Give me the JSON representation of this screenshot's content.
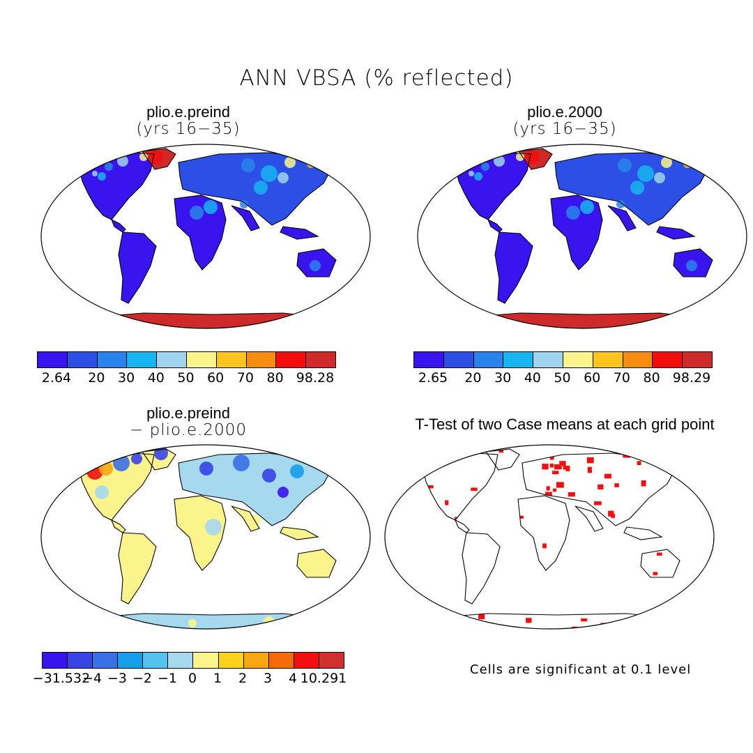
{
  "title": "ANN VBSA (% reflected)",
  "panels": [
    {
      "title": "plio.e.preind",
      "subtitle": "(yrs 16−35)",
      "colorbar": {
        "colors": [
          "#3a14ee",
          "#2c50e6",
          "#2a82ec",
          "#18b4f2",
          "#a0d4ee",
          "#fbf48c",
          "#fcc41c",
          "#f68d10",
          "#f40d0d",
          "#cf2a2a"
        ],
        "ticks": [
          "2.64",
          "20",
          "30",
          "40",
          "50",
          "60",
          "70",
          "80",
          "98.28"
        ]
      }
    },
    {
      "title": "plio.e.2000",
      "subtitle": "(yrs 16−35)",
      "colorbar": {
        "colors": [
          "#3a14ee",
          "#2c50e6",
          "#2a82ec",
          "#18b4f2",
          "#a0d4ee",
          "#fbf48c",
          "#fcc41c",
          "#f68d10",
          "#f40d0d",
          "#cf2a2a"
        ],
        "ticks": [
          "2.65",
          "20",
          "30",
          "40",
          "50",
          "60",
          "70",
          "80",
          "98.29"
        ]
      }
    },
    {
      "title": "plio.e.preind",
      "subtitle": "− plio.e.2000",
      "colorbar": {
        "colors": [
          "#3a14ee",
          "#3844e4",
          "#3a70e6",
          "#189ee8",
          "#54c0ee",
          "#a6d8ee",
          "#fbf48c",
          "#fcd21e",
          "#f8a614",
          "#f46a0c",
          "#f01010",
          "#d0302e"
        ],
        "ticks": [
          "−31.532",
          "−4",
          "−3",
          "−2",
          "−1",
          "0",
          "1",
          "2",
          "3",
          "4",
          "10.291"
        ]
      }
    },
    {
      "title": "T-Test of two Case means at each grid point",
      "note": "Cells are significant at 0.1 level",
      "signif_color": "#f01010"
    }
  ]
}
